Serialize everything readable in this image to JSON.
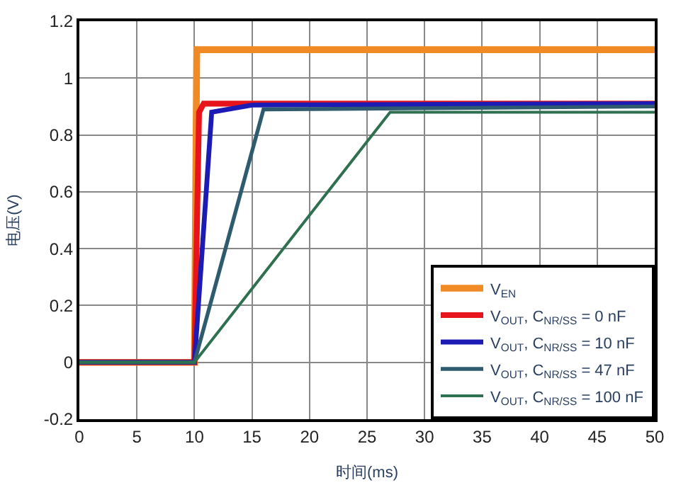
{
  "chart_data": {
    "type": "line",
    "xlabel": "时间(ms)",
    "ylabel": "电压(V)",
    "xlim": [
      0,
      50
    ],
    "ylim": [
      -0.2,
      1.2
    ],
    "xticks": [
      0,
      5,
      10,
      15,
      20,
      25,
      30,
      35,
      40,
      45,
      50
    ],
    "yticks": [
      -0.2,
      0,
      0.2,
      0.4,
      0.6,
      0.8,
      1,
      1.2
    ],
    "grid": true,
    "legend": "bottom right",
    "marker": "none",
    "line_style": "solid",
    "series": [
      {
        "name": "V$_{EN}$",
        "color": "#f08a24",
        "x": [
          0,
          10,
          10.2,
          50
        ],
        "values": [
          0,
          0,
          1.1,
          1.1
        ]
      },
      {
        "name": "V$_{OUT}$, C$_{NR/SS}$ = 0 nF",
        "color": "#e8141c",
        "x": [
          0,
          10,
          10.4,
          10.8,
          50
        ],
        "values": [
          0,
          0,
          0.88,
          0.91,
          0.91
        ]
      },
      {
        "name": "V$_{OUT}$, C$_{NR/SS}$ = 10 nF",
        "color": "#1c1cb4",
        "x": [
          0,
          10,
          11.5,
          15,
          50
        ],
        "values": [
          0,
          0,
          0.88,
          0.905,
          0.91
        ]
      },
      {
        "name": "V$_{OUT}$, C$_{NR/SS}$ = 47 nF",
        "color": "#2e5c6e",
        "x": [
          0,
          10,
          16,
          50
        ],
        "values": [
          0,
          0,
          0.89,
          0.9
        ]
      },
      {
        "name": "V$_{OUT}$, C$_{NR/SS}$ = 100 nF",
        "color": "#2e7050",
        "x": [
          0,
          10,
          27,
          50
        ],
        "values": [
          0,
          0,
          0.88,
          0.88
        ]
      }
    ]
  }
}
